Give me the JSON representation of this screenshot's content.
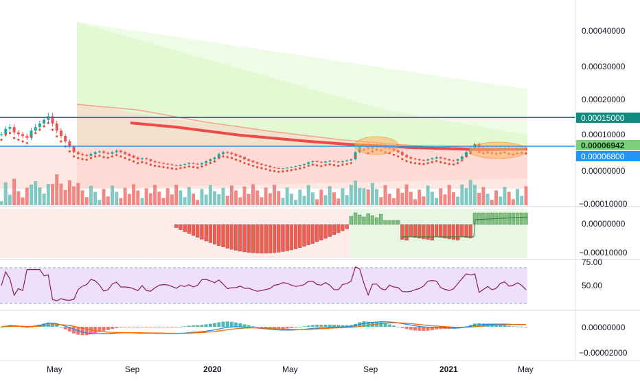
{
  "colors": {
    "up": "#6dc0b8",
    "down": "#f0736f",
    "bg_green": "#d8f7c4",
    "bg_red": "#ffd9d4",
    "teal_line": "#0f8b80",
    "blue_line": "#2196f3",
    "rsi_purple": "#8a1b5a",
    "rsi_band": "#eee0fb",
    "hist_green": "#66bb6a",
    "hist_red": "#f44336",
    "macd_blue": "#1e88e5",
    "signal_orange": "#ef6c00"
  },
  "price_labels": {
    "teal": "0.00015000",
    "green": "0.00006942",
    "blue": "0.00006800"
  },
  "chart_data": [
    {
      "panel": "price",
      "type": "candlestick",
      "y_ticks": [
        "0.00040000",
        "0.00030000",
        "0.00020000",
        "0.00010000",
        "0.00000000",
        "−0.00010000"
      ],
      "ylim": [
        -0.0001,
        0.0004
      ],
      "horizontal_lines": [
        0.00015,
        6.942e-05,
        6.8e-05
      ],
      "close": [
        0.00011,
        0.000125,
        0.00013,
        0.000115,
        0.00011,
        0.000105,
        0.0001,
        0.00012,
        0.00013,
        0.00014,
        0.00015,
        0.00016,
        0.00014,
        0.00012,
        0.000105,
        9e-05,
        7.5e-05,
        6e-05,
        5.5e-05,
        5.2e-05,
        5e-05,
        5.5e-05,
        6e-05,
        6.2e-05,
        5.8e-05,
        5.6e-05,
        6e-05,
        6.4e-05,
        6e-05,
        5.5e-05,
        5e-05,
        4.5e-05,
        4e-05,
        4.3e-05,
        4e-05,
        3.5e-05,
        3.2e-05,
        3e-05,
        2.8e-05,
        2.6e-05,
        2.4e-05,
        2.2e-05,
        2.5e-05,
        2.7e-05,
        3e-05,
        2.8e-05,
        2.6e-05,
        3e-05,
        3.5e-05,
        4e-05,
        4.5e-05,
        5.5e-05,
        6e-05,
        5.8e-05,
        5.5e-05,
        5e-05,
        4.6e-05,
        4e-05,
        3.6e-05,
        3.2e-05,
        2.8e-05,
        2.5e-05,
        2.2e-05,
        1.8e-05,
        1.6e-05,
        1.4e-05,
        1.5e-05,
        1.7e-05,
        1.9e-05,
        2.1e-05,
        2.4e-05,
        2.7e-05,
        3.2e-05,
        3.5e-05,
        3.3e-05,
        3.1e-05,
        3.4e-05,
        3.6e-05,
        3.4e-05,
        3.2e-05,
        3.5e-05,
        3.7e-05,
        4e-05,
        6e-05,
        7.8e-05,
        8e-05,
        7e-05,
        7.5e-05,
        8e-05,
        7.8e-05,
        7.2e-05,
        7e-05,
        6.5e-05,
        6e-05,
        5.2e-05,
        4.6e-05,
        4.2e-05,
        4e-05,
        3.8e-05,
        3.7e-05,
        4e-05,
        4.3e-05,
        4.6e-05,
        4.3e-05,
        4e-05,
        3.7e-05,
        3.6e-05,
        4e-05,
        4.8e-05,
        6e-05,
        7e-05,
        8.2e-05,
        7.3e-05,
        7e-05,
        7.2e-05,
        7e-05,
        6.8e-05,
        7e-05,
        7.2e-05,
        6.8e-05,
        6.6e-05,
        6.9e-05,
        7.1e-05,
        6.9e-05
      ]
    },
    {
      "panel": "oscillator",
      "type": "histogram",
      "y_ticks": [
        "0.00000000",
        "−0.00010000"
      ],
      "ylim": [
        -0.00013,
        3e-05
      ]
    },
    {
      "panel": "rsi",
      "type": "line",
      "y_ticks": [
        "75.00",
        "50.00"
      ],
      "ylim": [
        20,
        80
      ],
      "band": [
        30,
        70
      ]
    },
    {
      "panel": "macd",
      "type": "line+histogram",
      "y_ticks": [
        "0.00000000",
        "−0.00002000"
      ],
      "ylim": [
        -2.6e-05,
        1.2e-05
      ]
    }
  ],
  "x_ticks": [
    "May",
    "Sep",
    "2020",
    "May",
    "Sep",
    "2021",
    "May"
  ]
}
